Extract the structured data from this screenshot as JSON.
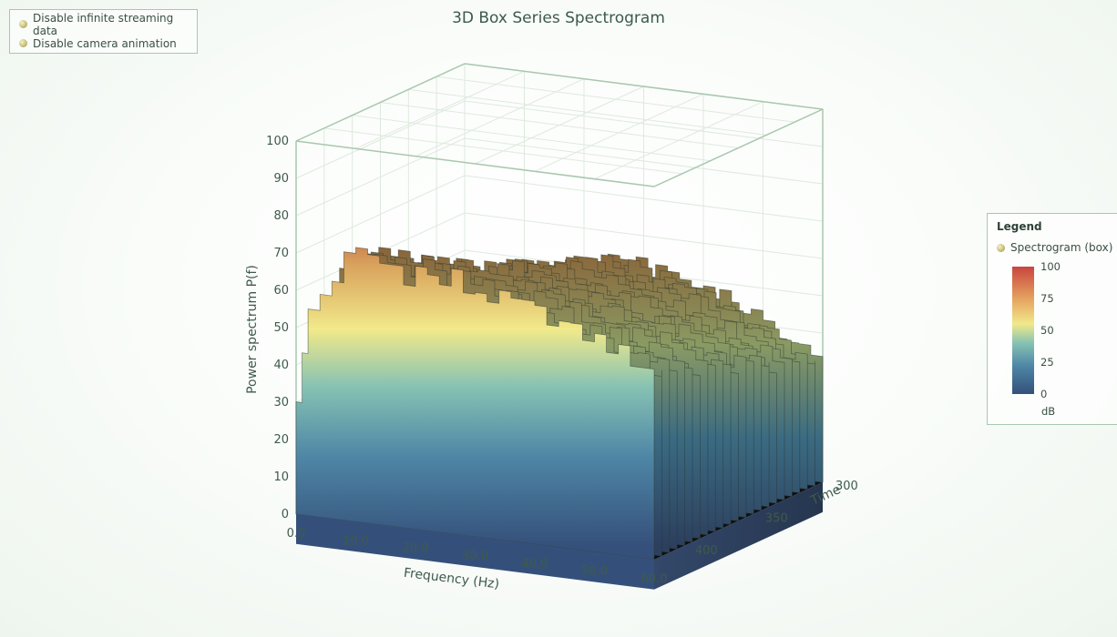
{
  "controls": {
    "toggles": [
      {
        "label": "Disable infinite streaming data"
      },
      {
        "label": "Disable camera animation"
      }
    ]
  },
  "legend": {
    "title": "Legend",
    "entry": "Spectrogram (box)",
    "scale_labels": [
      "100",
      "75",
      "50",
      "25",
      "0"
    ],
    "unit": "dB",
    "colors": {
      "low": "#35507a",
      "mid_low": "#4e86a6",
      "mid": "#f1e98a",
      "mid_high": "#e5a25f",
      "high": "#c8463f"
    }
  },
  "chart_data": {
    "type": "3d-box-spectrogram",
    "title": "3D Box Series Spectrogram",
    "xlabel": "Frequency (Hz)",
    "ylabel": "Power spectrum P(f)",
    "zlabel": "Time",
    "xlim": [
      0,
      60
    ],
    "ylim": [
      0,
      100
    ],
    "zlim": [
      300,
      420
    ],
    "x_ticks": [
      "0.0",
      "10.0",
      "20.0",
      "30.0",
      "40.0",
      "50.0",
      "60.0"
    ],
    "y_ticks": [
      "0",
      "10",
      "20",
      "30",
      "40",
      "50",
      "60",
      "70",
      "80",
      "90",
      "100"
    ],
    "z_ticks": [
      "300",
      "350",
      "400"
    ],
    "front_profile_freq": [
      0,
      1,
      2,
      4,
      6,
      8,
      10,
      12,
      14,
      16,
      18,
      20,
      22,
      24,
      26,
      28,
      30,
      32,
      34,
      36,
      38,
      40,
      42,
      44,
      46,
      48,
      50,
      52,
      54,
      56,
      58,
      60
    ],
    "front_profile_power": [
      32,
      42,
      55,
      60,
      65,
      70,
      72,
      72,
      70,
      70,
      68,
      70,
      68,
      67,
      69,
      66,
      66,
      65,
      64,
      64,
      63,
      62,
      62,
      60,
      58,
      58,
      57,
      56,
      54,
      53,
      52,
      50
    ],
    "back_profile_power": [
      20,
      22,
      26,
      30,
      34,
      38,
      42,
      44,
      46,
      48,
      48,
      49,
      50,
      51,
      52,
      53,
      52,
      51,
      50,
      49,
      49,
      48,
      47,
      46,
      44,
      42,
      40,
      38,
      36,
      34,
      32,
      30
    ]
  }
}
